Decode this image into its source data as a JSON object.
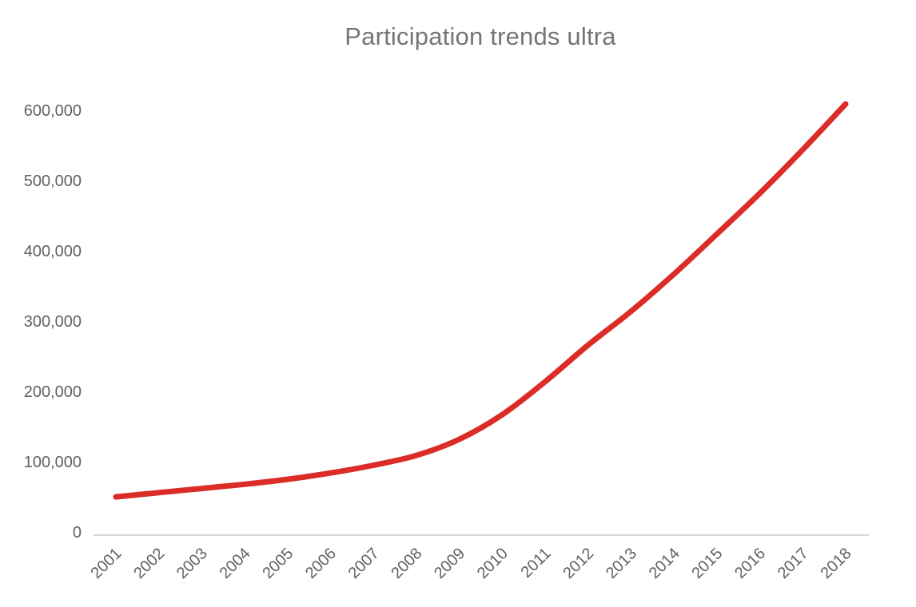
{
  "chart_data": {
    "type": "line",
    "title": "Participation trends ultra",
    "categories": [
      "2001",
      "2002",
      "2003",
      "2004",
      "2005",
      "2006",
      "2007",
      "2008",
      "2009",
      "2010",
      "2011",
      "2012",
      "2013",
      "2014",
      "2015",
      "2016",
      "2017",
      "2018"
    ],
    "series": [
      {
        "values": [
          51000,
          57000,
          63000,
          69000,
          76000,
          85000,
          96000,
          110000,
          133000,
          168000,
          215000,
          267000,
          315000,
          368000,
          425000,
          483000,
          545000,
          610000
        ],
        "color": "#db2c28"
      }
    ],
    "xlabel": "",
    "ylabel": "",
    "ylim": [
      0,
      620000
    ],
    "yticks": [
      0,
      100000,
      200000,
      300000,
      400000,
      500000,
      600000
    ],
    "ytick_labels": [
      "0",
      "100,000",
      "200,000",
      "300,000",
      "400,000",
      "500,000",
      "600,000"
    ],
    "xtick_rotation_deg": 45,
    "grid": false,
    "legend": "none",
    "styles": {
      "line_color": "#db2c28",
      "line_width": 7,
      "title_color": "#757575",
      "tick_label_color": "#616161",
      "axis_line_color": "#cccccc",
      "background": "#ffffff"
    }
  }
}
